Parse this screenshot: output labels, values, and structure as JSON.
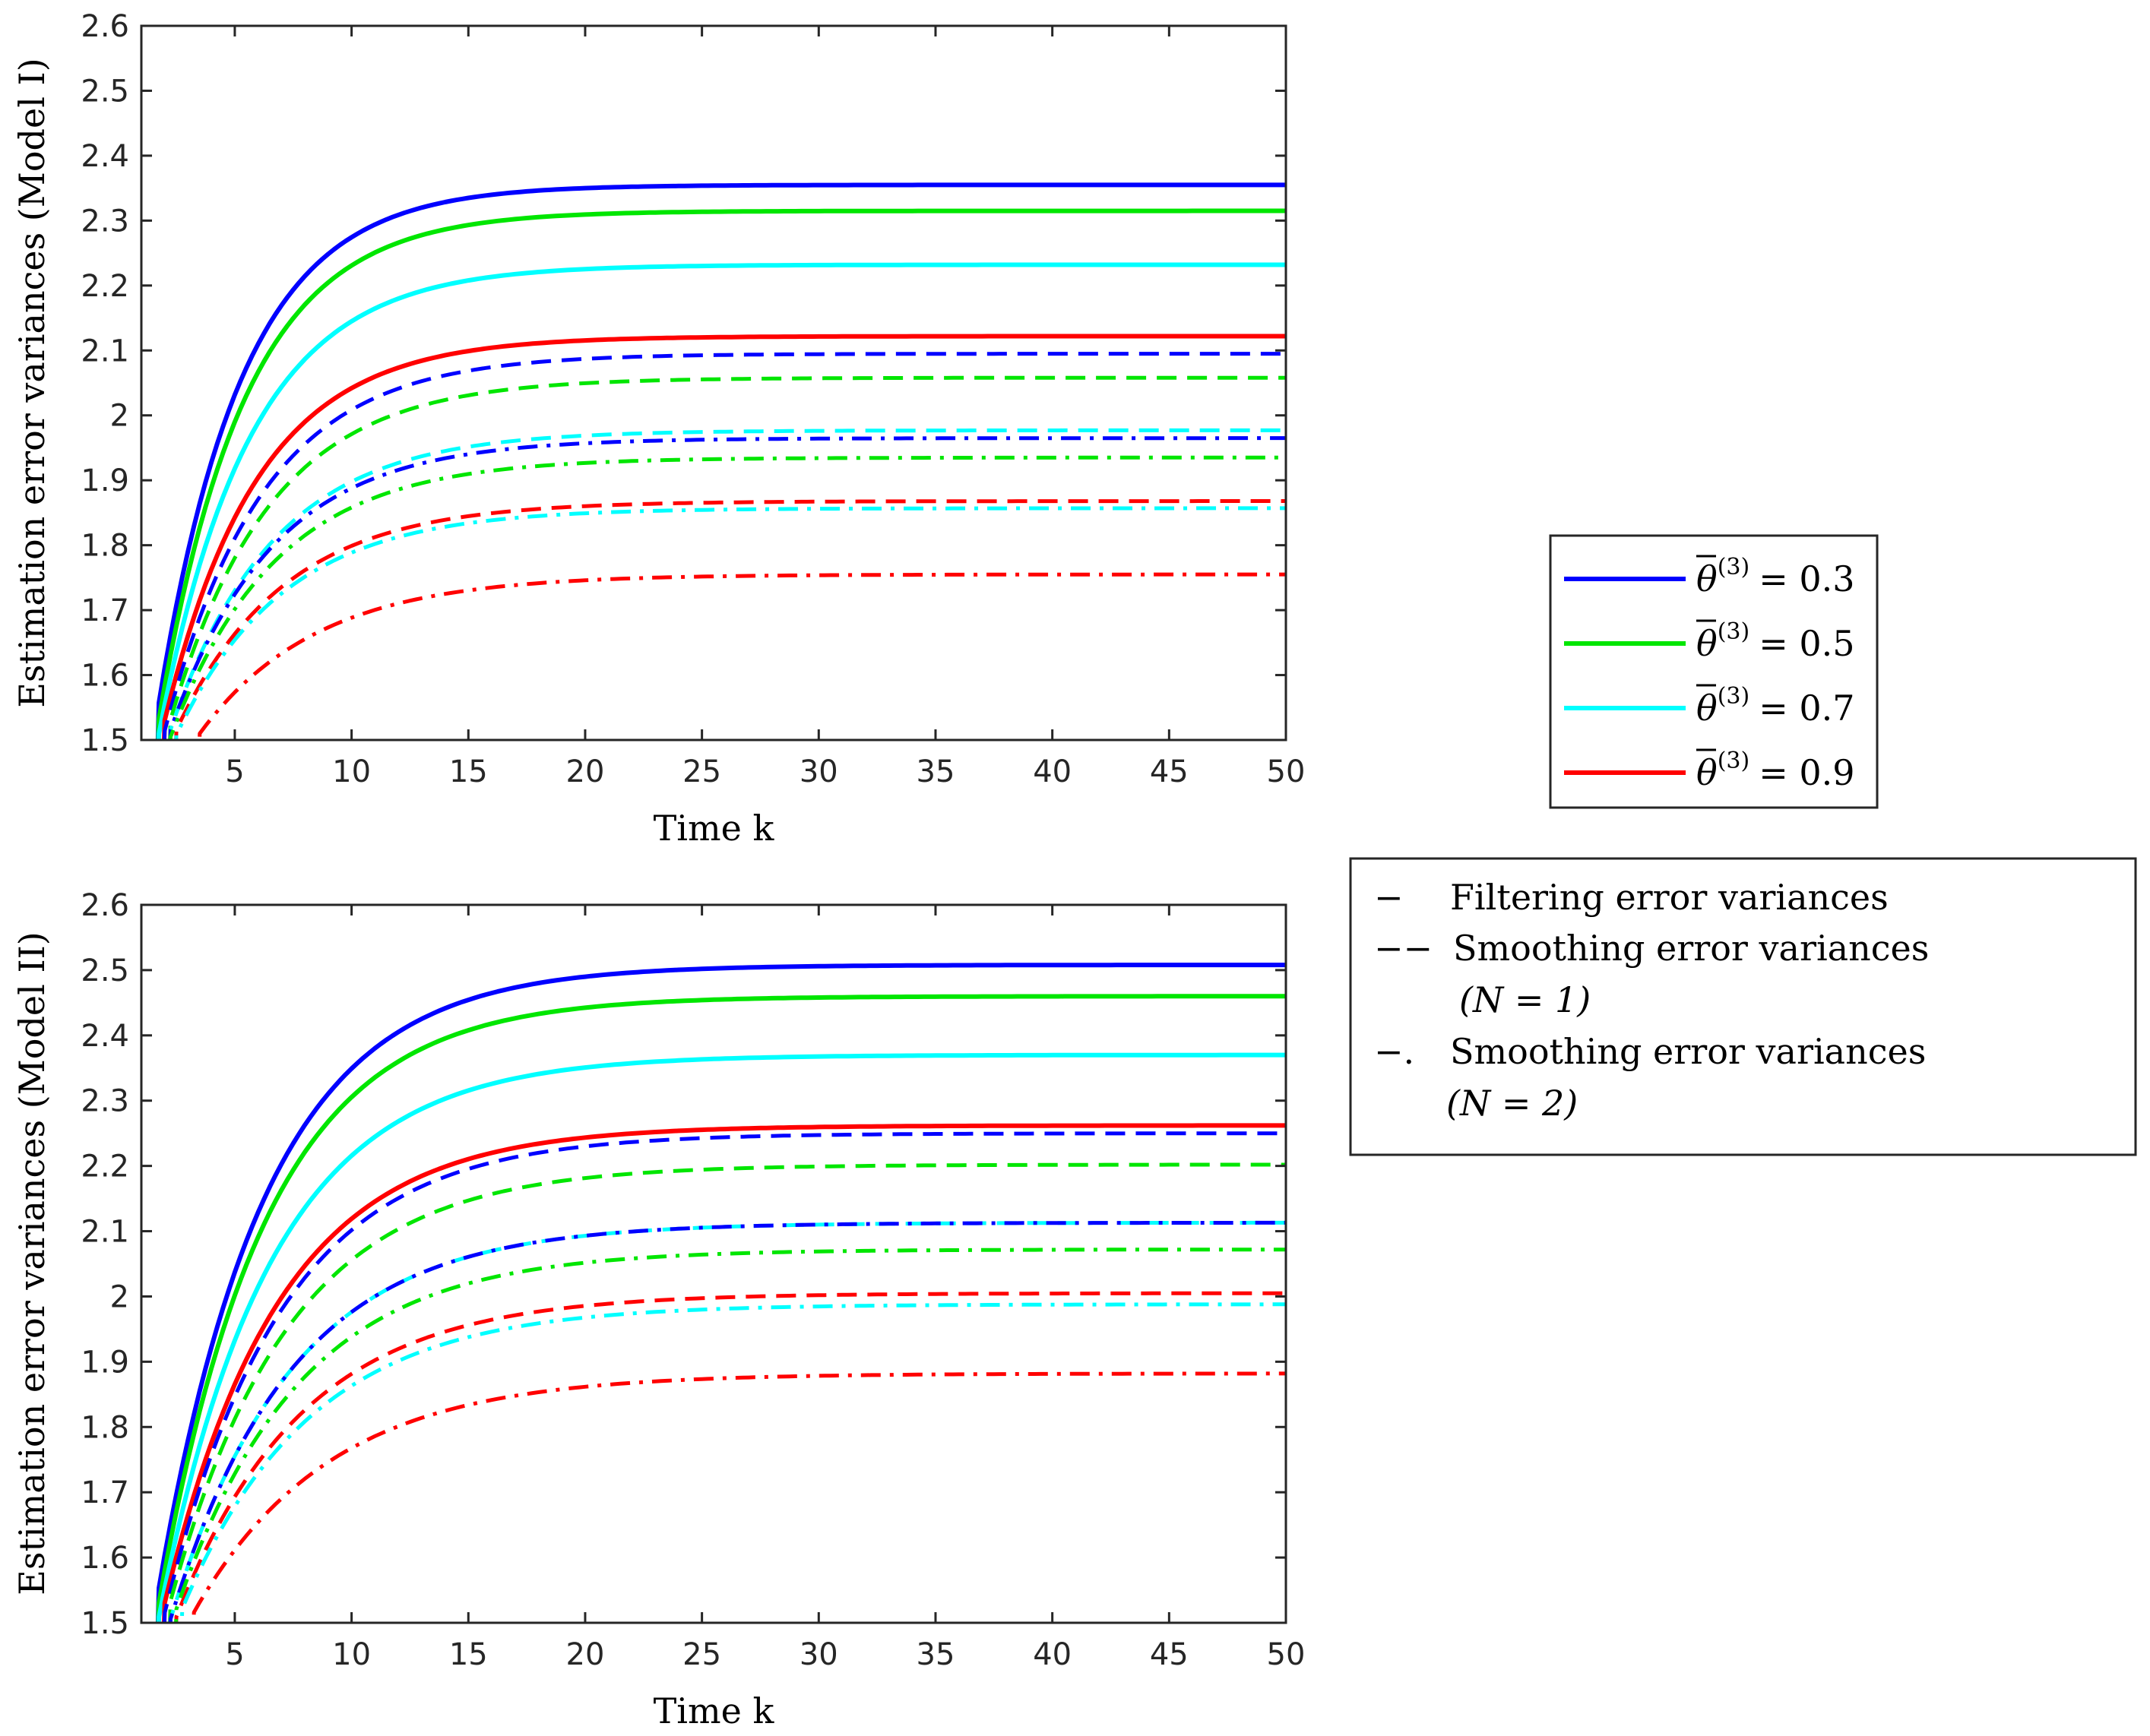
{
  "chart_data": [
    {
      "type": "line",
      "panel": "top",
      "xlabel": "Time k",
      "ylabel": "Estimation error variances (Model I)",
      "xlim": [
        1,
        50
      ],
      "ylim": [
        1.5,
        2.6
      ],
      "xticks": [
        "5",
        "10",
        "15",
        "20",
        "25",
        "30",
        "35",
        "40",
        "45",
        "50"
      ],
      "yticks": [
        "1.5",
        "1.6",
        "1.7",
        "1.8",
        "1.9",
        "2",
        "2.1",
        "2.2",
        "2.3",
        "2.4",
        "2.5",
        "2.6"
      ],
      "series": [
        {
          "name": "filtering θ=0.3",
          "color": "#0000ff",
          "style": "solid",
          "steady": 2.355,
          "start_k": 1.5,
          "tau": 3.6
        },
        {
          "name": "filtering θ=0.5",
          "color": "#00e600",
          "style": "solid",
          "steady": 2.315,
          "start_k": 1.6,
          "tau": 3.7
        },
        {
          "name": "filtering θ=0.7",
          "color": "#00ffff",
          "style": "solid",
          "steady": 2.232,
          "start_k": 1.7,
          "tau": 3.9
        },
        {
          "name": "filtering θ=0.9",
          "color": "#ff0000",
          "style": "solid",
          "steady": 2.122,
          "start_k": 1.8,
          "tau": 4.0
        },
        {
          "name": "smoothing N=1 θ=0.3",
          "color": "#0000ff",
          "style": "dashed",
          "steady": 2.095,
          "start_k": 1.9,
          "tau": 4.2
        },
        {
          "name": "smoothing N=1 θ=0.5",
          "color": "#00e600",
          "style": "dashed",
          "steady": 2.058,
          "start_k": 2.0,
          "tau": 4.3
        },
        {
          "name": "smoothing N=1 θ=0.7",
          "color": "#00ffff",
          "style": "dashed",
          "steady": 1.977,
          "start_k": 2.1,
          "tau": 4.4
        },
        {
          "name": "smoothing N=1 θ=0.9",
          "color": "#ff0000",
          "style": "dashed",
          "steady": 1.868,
          "start_k": 2.3,
          "tau": 4.6
        },
        {
          "name": "smoothing N=2 θ=0.3",
          "color": "#0000ff",
          "style": "dashdot",
          "steady": 1.965,
          "start_k": 2.1,
          "tau": 4.4
        },
        {
          "name": "smoothing N=2 θ=0.5",
          "color": "#00e600",
          "style": "dashdot",
          "steady": 1.935,
          "start_k": 2.2,
          "tau": 4.5
        },
        {
          "name": "smoothing N=2 θ=0.7",
          "color": "#00ffff",
          "style": "dashdot",
          "steady": 1.857,
          "start_k": 2.4,
          "tau": 4.6
        },
        {
          "name": "smoothing N=2 θ=0.9",
          "color": "#ff0000",
          "style": "dashdot",
          "steady": 1.755,
          "start_k": 3.3,
          "tau": 5.0
        }
      ]
    },
    {
      "type": "line",
      "panel": "bottom",
      "xlabel": "Time k",
      "ylabel": "Estimation error variances (Model II)",
      "xlim": [
        1,
        50
      ],
      "ylim": [
        1.5,
        2.6
      ],
      "xticks": [
        "5",
        "10",
        "15",
        "20",
        "25",
        "30",
        "35",
        "40",
        "45",
        "50"
      ],
      "yticks": [
        "1.5",
        "1.6",
        "1.7",
        "1.8",
        "1.9",
        "2",
        "2.1",
        "2.2",
        "2.3",
        "2.4",
        "2.5",
        "2.6"
      ],
      "series": [
        {
          "name": "filtering θ=0.3",
          "color": "#0000ff",
          "style": "solid",
          "steady": 2.508,
          "start_k": 1.5,
          "tau": 4.6
        },
        {
          "name": "filtering θ=0.5",
          "color": "#00e600",
          "style": "solid",
          "steady": 2.46,
          "start_k": 1.6,
          "tau": 4.6
        },
        {
          "name": "filtering θ=0.7",
          "color": "#00ffff",
          "style": "solid",
          "steady": 2.37,
          "start_k": 1.7,
          "tau": 4.8
        },
        {
          "name": "filtering θ=0.9",
          "color": "#ff0000",
          "style": "solid",
          "steady": 2.262,
          "start_k": 1.8,
          "tau": 4.9
        },
        {
          "name": "smoothing N=1 θ=0.3",
          "color": "#0000ff",
          "style": "dashed",
          "steady": 2.25,
          "start_k": 1.9,
          "tau": 5.0
        },
        {
          "name": "smoothing N=1 θ=0.5",
          "color": "#00e600",
          "style": "dashed",
          "steady": 2.202,
          "start_k": 2.0,
          "tau": 5.1
        },
        {
          "name": "smoothing N=1 θ=0.7",
          "color": "#00ffff",
          "style": "dashed",
          "steady": 2.113,
          "start_k": 2.2,
          "tau": 5.2
        },
        {
          "name": "smoothing N=1 θ=0.9",
          "color": "#ff0000",
          "style": "dashed",
          "steady": 2.005,
          "start_k": 2.4,
          "tau": 5.4
        },
        {
          "name": "smoothing N=2 θ=0.3",
          "color": "#0000ff",
          "style": "dashdot",
          "steady": 2.113,
          "start_k": 2.2,
          "tau": 5.2
        },
        {
          "name": "smoothing N=2 θ=0.5",
          "color": "#00e600",
          "style": "dashdot",
          "steady": 2.072,
          "start_k": 2.3,
          "tau": 5.3
        },
        {
          "name": "smoothing N=2 θ=0.7",
          "color": "#00ffff",
          "style": "dashdot",
          "steady": 1.988,
          "start_k": 2.5,
          "tau": 5.5
        },
        {
          "name": "smoothing N=2 θ=0.9",
          "color": "#ff0000",
          "style": "dashdot",
          "steady": 1.882,
          "start_k": 3.0,
          "tau": 5.8
        }
      ]
    }
  ],
  "legend_theta": {
    "items": [
      {
        "value": "0.3",
        "color": "#0000ff"
      },
      {
        "value": "0.5",
        "color": "#00e600"
      },
      {
        "value": "0.7",
        "color": "#00ffff"
      },
      {
        "value": "0.9",
        "color": "#ff0000"
      }
    ],
    "symbol": "θ",
    "superscript": "(3)",
    "equals": "="
  },
  "legend_style": {
    "items": [
      {
        "symbol": "−",
        "text": "Filtering error variances",
        "subtext": ""
      },
      {
        "symbol": "−−",
        "text": "Smoothing error variances",
        "subtext": "(N = 1)"
      },
      {
        "symbol": "−.",
        "text": "Smoothing error variances",
        "subtext": "(N = 2)"
      }
    ]
  }
}
